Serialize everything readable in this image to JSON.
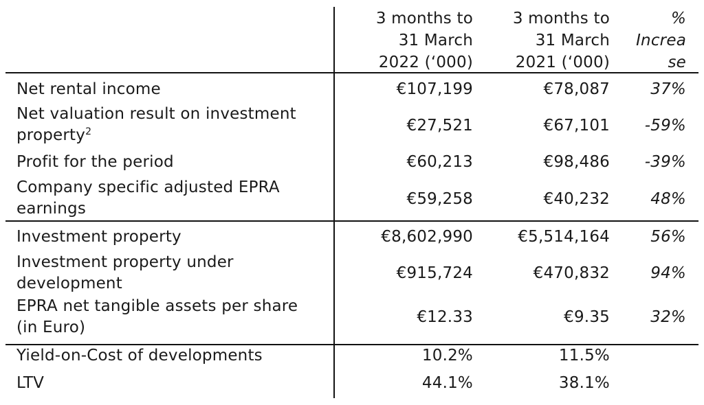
{
  "header": {
    "col1": [
      "3 months to",
      "31 March",
      "2022 (‘000)"
    ],
    "col2": [
      "3 months to",
      "31 March",
      "2021 (‘000)"
    ],
    "col3": [
      "%",
      "Increa",
      "se"
    ]
  },
  "rows": [
    {
      "label": [
        "Net rental income"
      ],
      "v2022": "€107,199",
      "v2021": "€78,087",
      "pct": "37%"
    },
    {
      "label": [
        "Net valuation result on investment",
        "property"
      ],
      "footnote": "2",
      "v2022": "€27,521",
      "v2021": "€67,101",
      "pct": "-59%"
    },
    {
      "label": [
        "Profit for the period"
      ],
      "v2022": "€60,213",
      "v2021": "€98,486",
      "pct": "-39%"
    },
    {
      "label": [
        "Company specific adjusted EPRA",
        "earnings"
      ],
      "v2022": "€59,258",
      "v2021": "€40,232",
      "pct": "48%"
    },
    {
      "label": [
        "Investment property"
      ],
      "v2022": "€8,602,990",
      "v2021": "€5,514,164",
      "pct": "56%"
    },
    {
      "label": [
        "Investment property under",
        "development"
      ],
      "v2022": "€915,724",
      "v2021": "€470,832",
      "pct": "94%"
    },
    {
      "label": [
        "EPRA net tangible assets per share",
        "(in Euro)"
      ],
      "v2022": "€12.33",
      "v2021": "€9.35",
      "pct": "32%"
    },
    {
      "label": [
        "Yield-on-Cost of developments"
      ],
      "v2022": "10.2%",
      "v2021": "11.5%",
      "pct": ""
    },
    {
      "label": [
        "LTV"
      ],
      "v2022": "44.1%",
      "v2021": "38.1%",
      "pct": ""
    }
  ]
}
